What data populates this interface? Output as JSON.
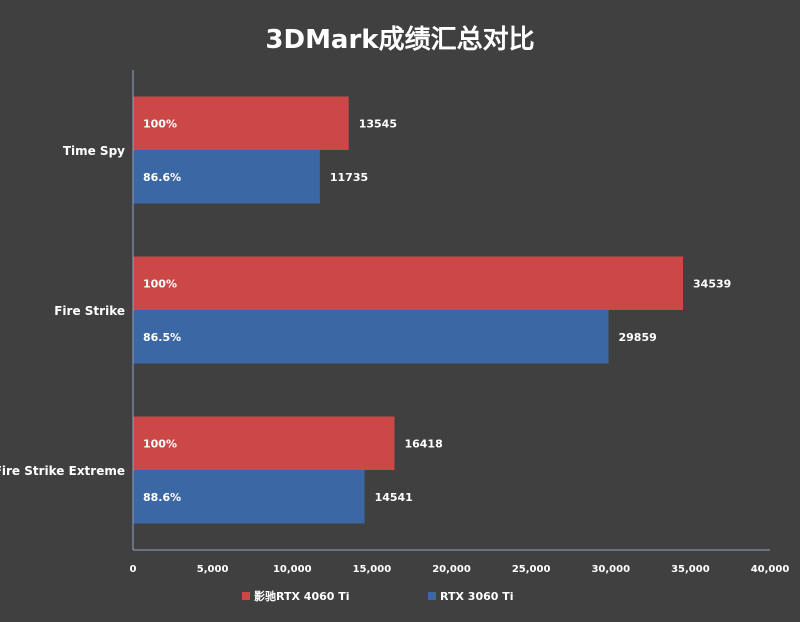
{
  "chart_data": {
    "type": "bar",
    "orientation": "horizontal",
    "title": "3DMark成绩汇总对比",
    "categories": [
      "Time Spy",
      "Fire Strike",
      "Fire Strike Extreme"
    ],
    "series": [
      {
        "name": "影驰RTX 4060 Ti",
        "color": "#cc4846",
        "values": [
          13545,
          34539,
          16418
        ],
        "labels": [
          "100%",
          "100%",
          "100%"
        ]
      },
      {
        "name": "RTX 3060 Ti",
        "color": "#3b68a4",
        "values": [
          11735,
          29859,
          14541
        ],
        "labels": [
          "86.6%",
          "86.5%",
          "88.6%"
        ]
      }
    ],
    "xlim": [
      0,
      40000
    ],
    "xticks": [
      0,
      5000,
      10000,
      15000,
      20000,
      25000,
      30000,
      35000,
      40000
    ],
    "xtick_labels": [
      "0",
      "5,000",
      "10,000",
      "15,000",
      "20,000",
      "25,000",
      "30,000",
      "35,000",
      "40,000"
    ],
    "grid": false,
    "legend": "bottom",
    "background": "#404040"
  }
}
